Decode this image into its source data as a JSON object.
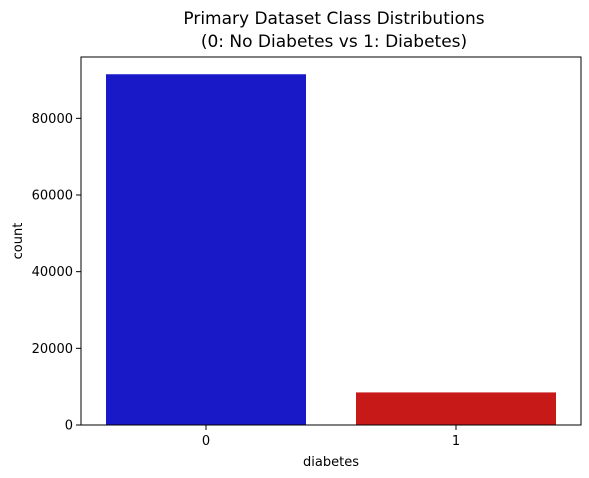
{
  "chart_data": {
    "type": "bar",
    "title_line1": "Primary Dataset Class Distributions",
    "title_line2": "(0: No Diabetes vs 1: Diabetes)",
    "categories": [
      "0",
      "1"
    ],
    "values": [
      91500,
      8500
    ],
    "bar_colors": [
      "#1919c8",
      "#c81919"
    ],
    "xlabel": "diabetes",
    "ylabel": "count",
    "ylim": [
      0,
      96000
    ],
    "yticks": [
      0,
      20000,
      40000,
      60000,
      80000
    ],
    "ytick_labels": [
      "0",
      "20000",
      "40000",
      "60000",
      "80000"
    ],
    "grid": false,
    "legend": "none"
  }
}
